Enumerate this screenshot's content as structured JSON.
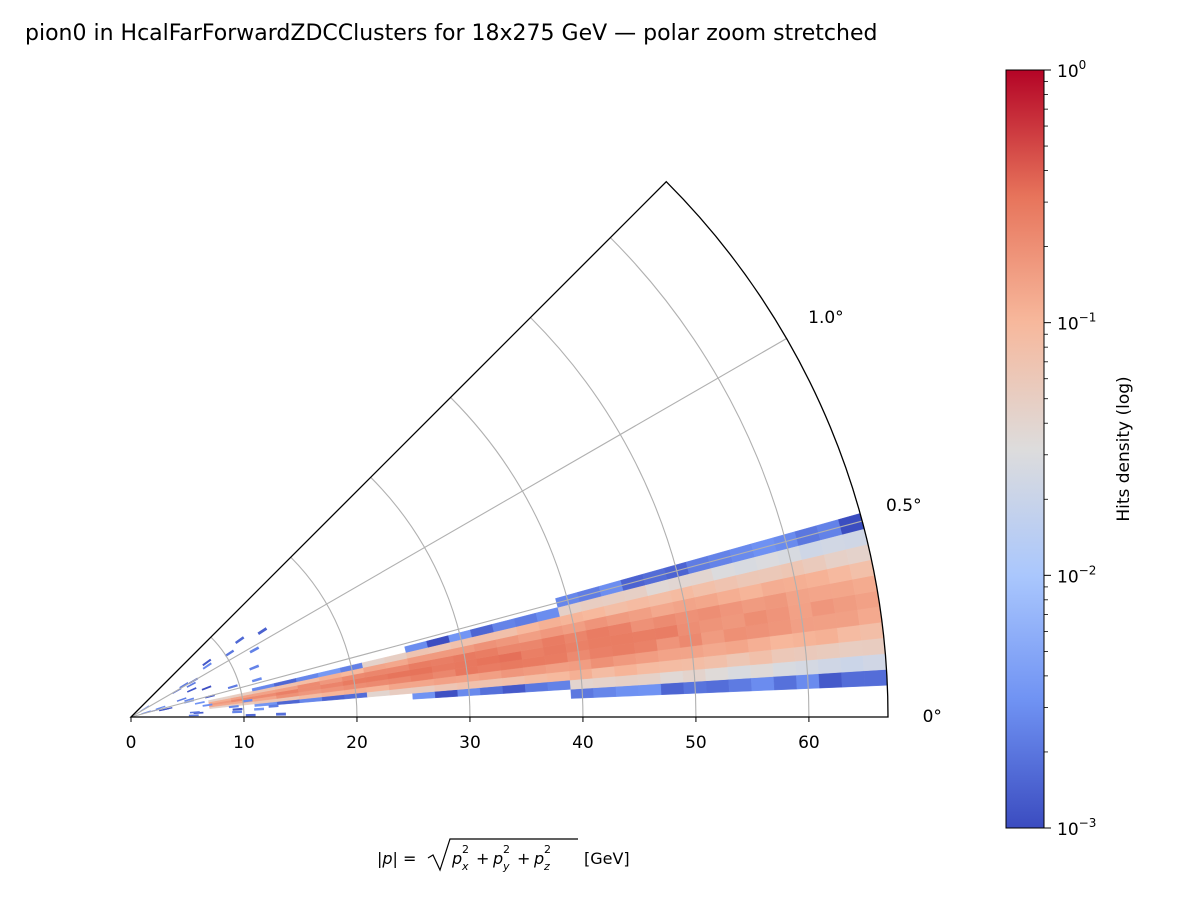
{
  "chart_data": {
    "type": "heatmap",
    "projection": "polar-wedge",
    "title": "pion0 in HcalFarForwardZDCClusters for 18x275 GeV — polar zoom stretched",
    "r_ticks": [
      "0",
      "10",
      "20",
      "30",
      "40",
      "50",
      "60"
    ],
    "r_tick_values": [
      0,
      10,
      20,
      30,
      40,
      50,
      60
    ],
    "r_range": [
      0,
      67
    ],
    "theta_range_deg": [
      0,
      1.5
    ],
    "theta_ticks": [
      "0°",
      "0.5°",
      "1.0°"
    ],
    "theta_tick_values_deg": [
      0,
      0.5,
      1.0
    ],
    "xlabel": {
      "lhs": "|p| = ",
      "p": "p",
      "sub_x": "x",
      "sub_y": "y",
      "sub_z": "z",
      "sup": "2",
      "plus": "+",
      "unit": "[GeV]"
    },
    "colorbar": {
      "label": "Hits density (log)",
      "scale": "log",
      "range": [
        0.001,
        1
      ],
      "cmap": "coolwarm",
      "ticks": [
        {
          "base": "10",
          "exp": "0",
          "value": 1
        },
        {
          "base": "10",
          "exp": "−1",
          "value": 0.1
        },
        {
          "base": "10",
          "exp": "−2",
          "value": 0.01
        },
        {
          "base": "10",
          "exp": "−3",
          "value": 0.001
        }
      ]
    },
    "distribution": {
      "description": "main band of hits centred near theta 0.3 deg, spanning r from about 8 to 66 GeV",
      "band_center_theta_deg": 0.3,
      "band_halfwidth_theta_deg": 0.16,
      "r_min": 7,
      "r_max": 66,
      "peak_density": 0.3,
      "bin_dr": 2,
      "bin_dtheta_deg": 0.04,
      "near_origin_sparse_region": {
        "r_max": 14,
        "theta_max_deg": 1.25,
        "density": 0.001
      }
    },
    "colors": {
      "grid": "#b0b0b0",
      "frame": "#000000",
      "cmap_stops": [
        "#3b4cc0",
        "#6f92f3",
        "#aac7fd",
        "#dddcdc",
        "#f7b89c",
        "#e7745b",
        "#b40426"
      ]
    }
  }
}
